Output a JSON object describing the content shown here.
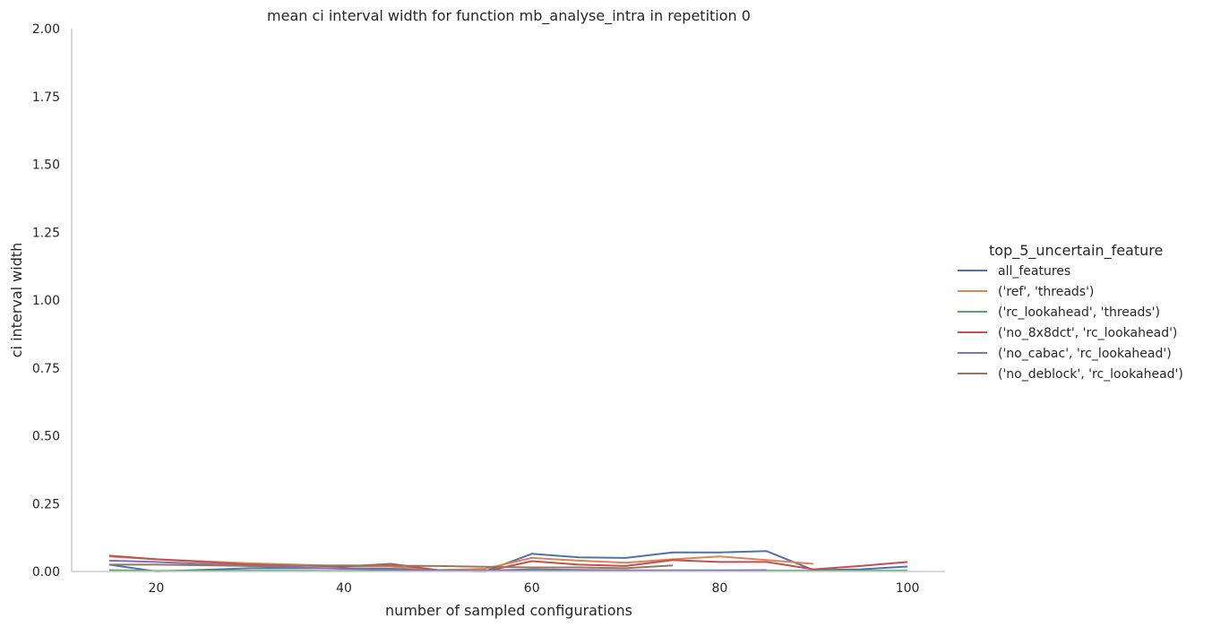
{
  "chart_data": {
    "type": "line",
    "title": "mean ci interval width for function mb_analyse_intra in repetition 0",
    "xlabel": "number of sampled configurations",
    "ylabel": "ci interval width",
    "xlim": [
      11,
      104
    ],
    "ylim": [
      0,
      2
    ],
    "x_ticks": [
      20,
      40,
      60,
      80,
      100
    ],
    "y_ticks": [
      0.0,
      0.25,
      0.5,
      0.75,
      1.0,
      1.25,
      1.5,
      1.75,
      2.0
    ],
    "x_tick_labels": [
      "20",
      "40",
      "60",
      "80",
      "100"
    ],
    "y_tick_labels": [
      "0.00",
      "0.25",
      "0.50",
      "0.75",
      "1.00",
      "1.25",
      "1.50",
      "1.75",
      "2.00"
    ],
    "grid": false,
    "legend": {
      "title": "top_5_uncertain_feature",
      "placement": "right"
    },
    "series": [
      {
        "name": "all_features",
        "color": "#4c72b0",
        "x": [
          15,
          20,
          30,
          40,
          45,
          50,
          55,
          60,
          65,
          70,
          75,
          80,
          85,
          90,
          95,
          100
        ],
        "y": [
          0.025,
          0.0,
          0.012,
          0.012,
          0.01,
          0.005,
          0.0,
          0.065,
          0.052,
          0.05,
          0.07,
          0.07,
          0.075,
          0.005,
          0.008,
          0.018
        ]
      },
      {
        "name": "('ref', 'threads')",
        "color": "#dd8452",
        "x": [
          15,
          20,
          30,
          40,
          45,
          50,
          55,
          60,
          65,
          70,
          75,
          80,
          85,
          90
        ],
        "y": [
          0.055,
          0.045,
          0.03,
          0.02,
          0.018,
          0.005,
          0.01,
          0.05,
          0.04,
          0.032,
          0.045,
          0.055,
          0.042,
          0.028
        ]
      },
      {
        "name": "('rc_lookahead', 'threads')",
        "color": "#55a868",
        "x": [
          15,
          20,
          30,
          40,
          50,
          60,
          70,
          80,
          90,
          100
        ],
        "y": [
          0.005,
          0.002,
          0.003,
          0.002,
          0.002,
          0.004,
          0.002,
          0.003,
          0.003,
          0.003
        ]
      },
      {
        "name": "('no_8x8dct', 'rc_lookahead')",
        "color": "#c44e52",
        "x": [
          15,
          20,
          30,
          40,
          45,
          50,
          55,
          60,
          65,
          70,
          75,
          80,
          85,
          90,
          95,
          100
        ],
        "y": [
          0.058,
          0.045,
          0.025,
          0.018,
          0.028,
          0.005,
          0.0,
          0.038,
          0.025,
          0.02,
          0.042,
          0.035,
          0.035,
          0.008,
          0.02,
          0.035
        ]
      },
      {
        "name": "('no_cabac', 'rc_lookahead')",
        "color": "#8172b3",
        "x": [
          15,
          20,
          30,
          40,
          50,
          55,
          60,
          70,
          80,
          85
        ],
        "y": [
          0.04,
          0.035,
          0.02,
          0.01,
          0.004,
          0.003,
          0.008,
          0.004,
          0.004,
          0.005
        ]
      },
      {
        "name": "('no_deblock', 'rc_lookahead')",
        "color": "#937860",
        "x": [
          15,
          20,
          30,
          40,
          50,
          60,
          65,
          70,
          75
        ],
        "y": [
          0.025,
          0.025,
          0.02,
          0.022,
          0.02,
          0.015,
          0.015,
          0.012,
          0.022
        ]
      }
    ]
  }
}
